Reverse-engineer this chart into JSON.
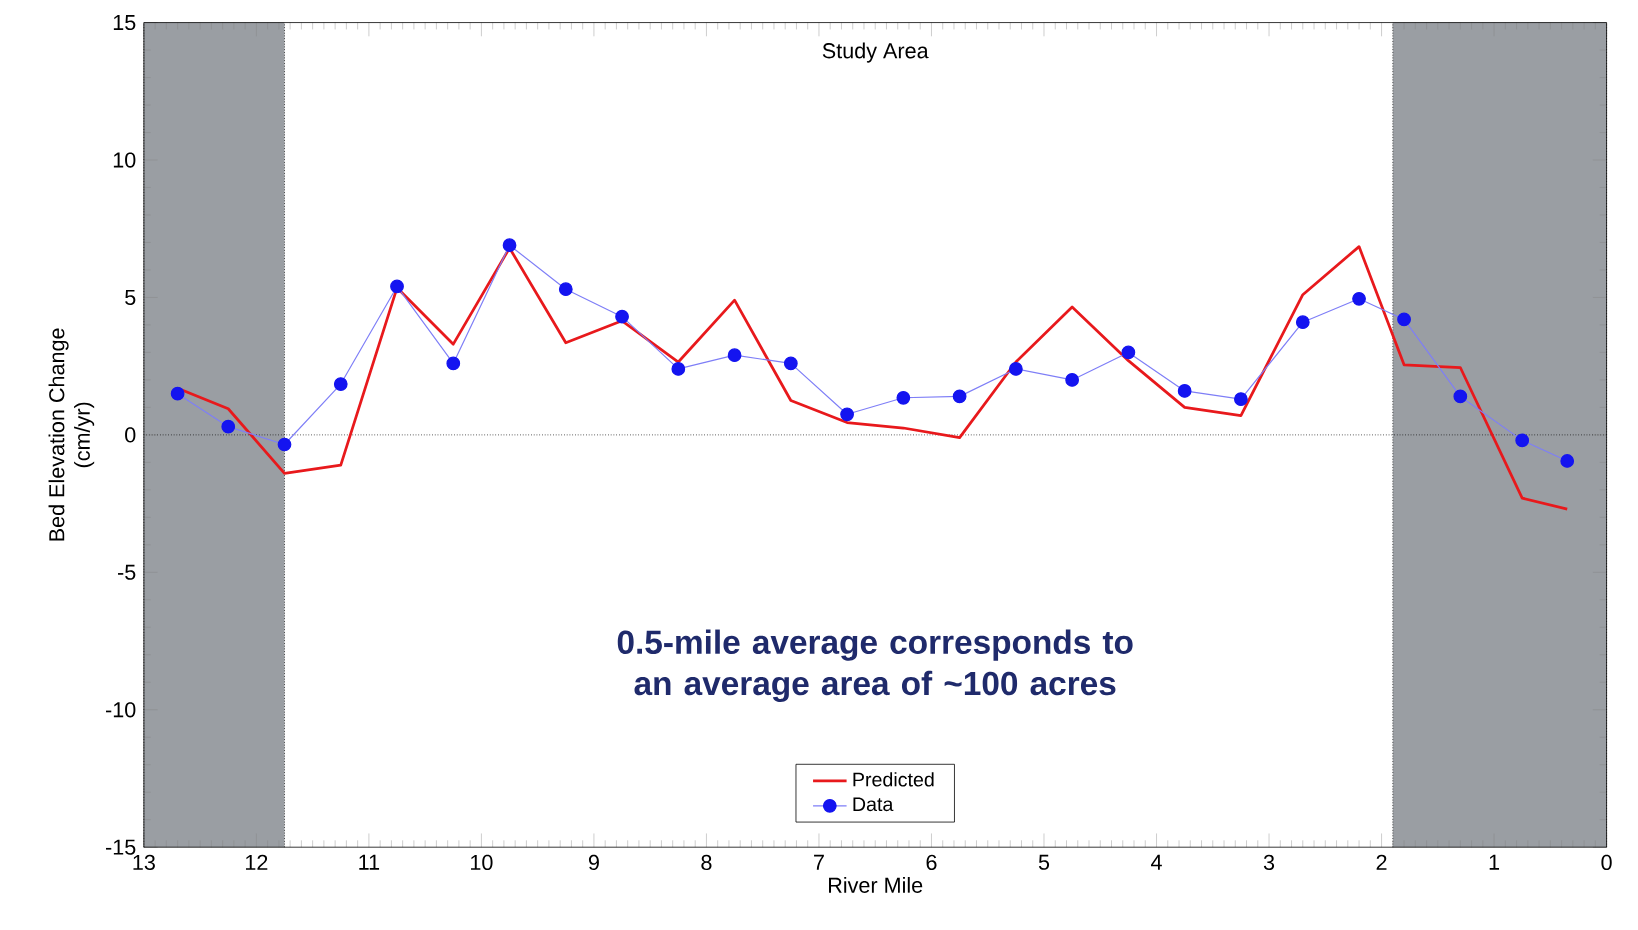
{
  "chart_data": {
    "type": "line",
    "xlabel": "River Mile",
    "ylabel": "Bed Elevation Change (cm/yr)",
    "annotations": [
      "Study Area",
      "0.5-mile average corresponds to an average area of ~100 acres"
    ],
    "xlim": [
      13,
      0
    ],
    "xticks": [
      13,
      12,
      11,
      10,
      9,
      8,
      7,
      6,
      5,
      4,
      3,
      2,
      1,
      0
    ],
    "ylim": [
      -15,
      15
    ],
    "yticks": [
      -15,
      -10,
      -5,
      0,
      5,
      10,
      15
    ],
    "series": [
      {
        "name": "Predicted",
        "color": "#e8191c",
        "marker": "none",
        "x": [
          12.7,
          12.25,
          11.75,
          11.25,
          10.75,
          10.25,
          9.75,
          9.25,
          8.75,
          8.25,
          7.75,
          7.25,
          6.75,
          6.25,
          5.75,
          5.25,
          4.75,
          4.25,
          3.75,
          3.25,
          2.7,
          2.2,
          1.8,
          1.3,
          0.75,
          0.35
        ],
        "values": [
          1.7,
          0.95,
          -1.4,
          -1.1,
          5.35,
          3.3,
          6.8,
          3.35,
          4.15,
          2.65,
          4.9,
          1.25,
          0.45,
          0.25,
          -0.1,
          2.65,
          4.65,
          2.7,
          1.0,
          0.7,
          5.1,
          6.85,
          2.55,
          2.45,
          -2.3,
          -2.7
        ]
      },
      {
        "name": "Data",
        "color": "#1414f0",
        "marker": "circle",
        "x": [
          12.7,
          12.25,
          11.75,
          11.25,
          10.75,
          10.25,
          9.75,
          9.25,
          8.75,
          8.25,
          7.75,
          7.25,
          6.75,
          6.25,
          5.75,
          5.25,
          4.75,
          4.25,
          3.75,
          3.25,
          2.7,
          2.2,
          1.8,
          1.3,
          0.75,
          0.35
        ],
        "values": [
          1.5,
          0.3,
          -0.35,
          1.85,
          5.4,
          2.6,
          6.9,
          5.3,
          4.3,
          2.4,
          2.9,
          2.6,
          0.75,
          1.35,
          1.4,
          2.4,
          2.0,
          3.0,
          1.6,
          1.3,
          4.1,
          4.95,
          4.2,
          1.4,
          -0.2,
          -0.95
        ]
      }
    ],
    "bands": [
      {
        "axis": "x",
        "from": 13,
        "to": 11.75,
        "color": "#9a9ea3"
      },
      {
        "axis": "x",
        "from": 1.9,
        "to": 0,
        "color": "#9a9ea3"
      }
    ],
    "ref_lines": [
      {
        "axis": "y",
        "value": 0,
        "line_style": "dotted",
        "color": "#000000"
      }
    ],
    "legend": "bottom",
    "grid": false
  }
}
